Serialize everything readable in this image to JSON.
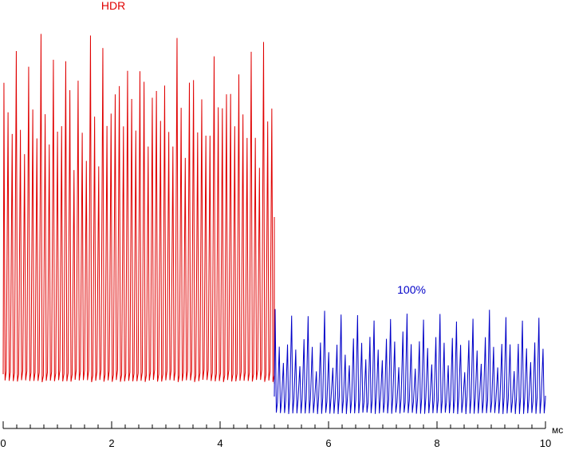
{
  "chart_data": {
    "type": "line",
    "title": "",
    "xlabel": "",
    "ylabel": "",
    "x_unit": "мс",
    "xlim": [
      0,
      10
    ],
    "x_ticks": [
      0,
      2,
      4,
      6,
      8,
      10
    ],
    "x_tick_labels": [
      "0",
      "2",
      "4",
      "6",
      "8",
      "10"
    ],
    "x_minor_step": 0.25,
    "y_axis_shown": false,
    "grid": false,
    "legend": "none",
    "colors": {
      "HDR": "#e00000",
      "100%": "#0000c8"
    },
    "series": [
      {
        "name": "HDR",
        "label": "HDR",
        "color": "#e00000",
        "x_range": [
          0,
          5.0
        ],
        "pulse_period_ms": 0.076,
        "baseline_relative": 0.0,
        "max_peak_relative": 1.0,
        "description_values": {
          "min": 0.0,
          "max": 1.0
        }
      },
      {
        "name": "100%",
        "label": "100%",
        "color": "#0000c8",
        "x_range": [
          5.0,
          10.0
        ],
        "pulse_period_ms": 0.076,
        "baseline_relative": -0.08,
        "max_peak_relative": 0.2,
        "description_values": {
          "min": -0.08,
          "max": 0.2
        }
      }
    ]
  }
}
